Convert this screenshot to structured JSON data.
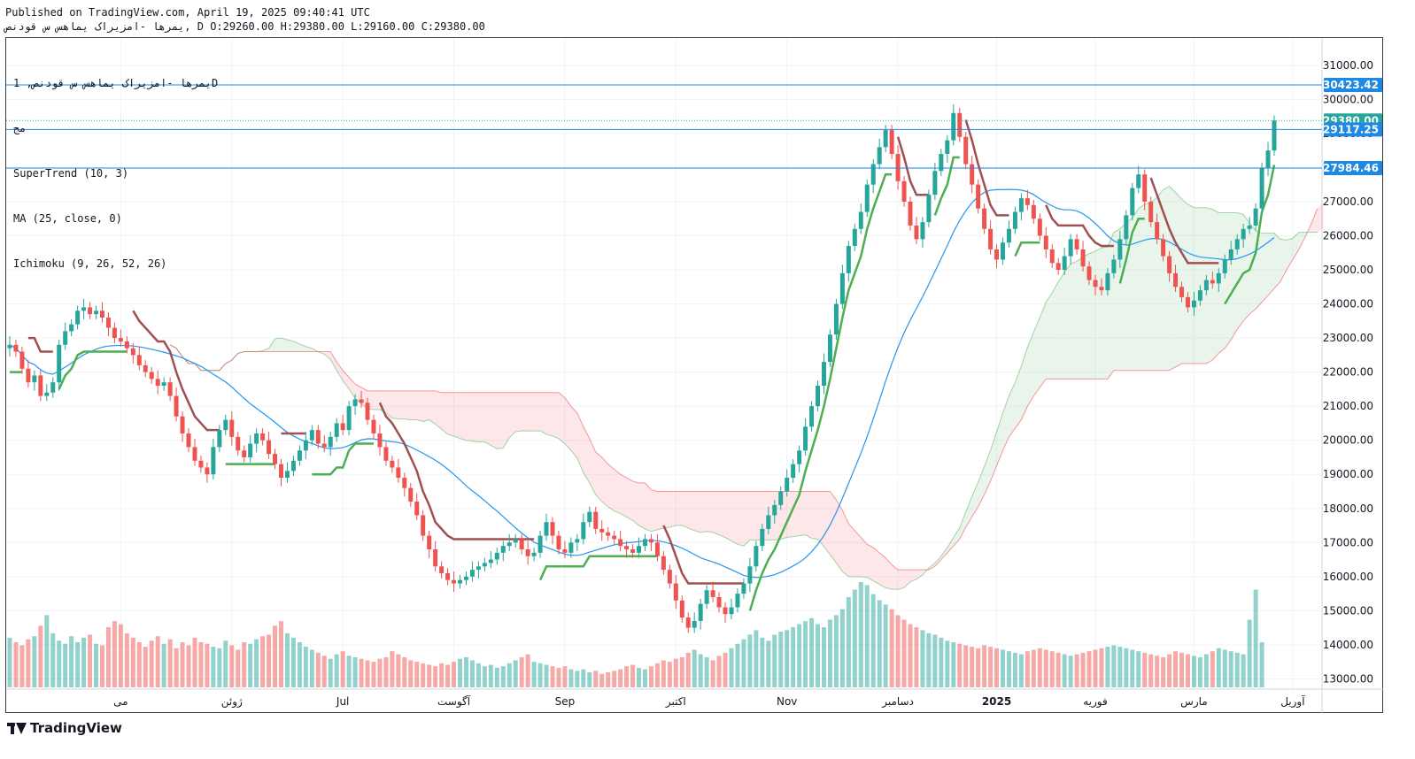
{
  "header": {
    "line1": "Published on TradingView.com, April 19, 2025 09:40:41 UTC",
    "symbol": "یمرها -امزیراک یماهس س قودنص",
    "ohlc": ", D O:29260.00 H:29380.00 L:29160.00 C:29380.00"
  },
  "legend": {
    "title": "یمرها -امزیراک یماهس س قودنص, 1D",
    "exchange": "مج",
    "indicators": [
      "SuperTrend (10, 3)",
      "MA (25, close, 0)",
      "Ichimoku (9, 26, 52, 26)"
    ]
  },
  "footer": {
    "brand": "TradingView"
  },
  "colors": {
    "up": "#26a69a",
    "down": "#ef5350",
    "supertrend_up": "#4caf50",
    "supertrend_down": "#a05050",
    "ma": "#2196f3",
    "hline": "#1e88e5"
  },
  "chart_data": {
    "type": "candlestick",
    "x_labels": [
      "می",
      "ژوئن",
      "Jul",
      "آگوست",
      "Sep",
      "اکتبر",
      "Nov",
      "دسامبر",
      "2025",
      "فوریه",
      "مارس",
      "آوریل"
    ],
    "y_ticks": [
      31000,
      30000,
      29000,
      28000,
      27000,
      26000,
      25000,
      24000,
      23000,
      22000,
      21000,
      20000,
      19000,
      18000,
      17000,
      16000,
      15000,
      14000,
      13000
    ],
    "ylim": [
      12700,
      31800
    ],
    "horizontal_lines": [
      30423.42,
      29117.25,
      27984.46
    ],
    "price_labels": [
      {
        "value": 30423.42,
        "text": "30423.42",
        "color": "#1e88e5"
      },
      {
        "value": 29380.0,
        "text": "29380.00",
        "color": "#26a69a"
      },
      {
        "value": 29117.25,
        "text": "29117.25",
        "color": "#1e88e5"
      },
      {
        "value": 27984.46,
        "text": "27984.46",
        "color": "#1e88e5"
      }
    ],
    "last_close": 29380,
    "closes": [
      22800,
      22600,
      22100,
      21700,
      21900,
      21300,
      21400,
      21700,
      22800,
      23200,
      23400,
      23800,
      23900,
      23700,
      23800,
      23600,
      23300,
      23000,
      22900,
      22700,
      22500,
      22200,
      22000,
      21800,
      21600,
      21700,
      21300,
      20700,
      20200,
      19800,
      19400,
      19200,
      19000,
      19800,
      20300,
      20600,
      20100,
      19700,
      19500,
      19900,
      20200,
      20000,
      19600,
      19300,
      18900,
      19100,
      19400,
      19700,
      20000,
      20300,
      19900,
      19800,
      20100,
      20500,
      20300,
      21000,
      21200,
      21100,
      20600,
      20200,
      19800,
      19400,
      19200,
      18900,
      18600,
      18200,
      17800,
      17200,
      16800,
      16300,
      16100,
      15900,
      15800,
      15900,
      16000,
      16200,
      16300,
      16400,
      16500,
      16700,
      16900,
      17000,
      17100,
      16800,
      16600,
      16700,
      17200,
      17600,
      17200,
      16800,
      16700,
      17000,
      17100,
      17600,
      17900,
      17400,
      17300,
      17200,
      17100,
      16900,
      16800,
      16700,
      16900,
      17100,
      17000,
      16600,
      16200,
      15800,
      15300,
      14800,
      14500,
      14700,
      15200,
      15600,
      15400,
      15100,
      14900,
      15100,
      15500,
      15800,
      16300,
      16900,
      17400,
      17800,
      18100,
      18500,
      18900,
      19300,
      19700,
      20400,
      21000,
      21600,
      22300,
      23100,
      24000,
      24900,
      25700,
      26200,
      26700,
      27500,
      28100,
      28600,
      29100,
      28400,
      27600,
      27000,
      26300,
      25900,
      26400,
      27200,
      27900,
      28400,
      28800,
      29600,
      28900,
      28100,
      27500,
      26800,
      26200,
      25600,
      25300,
      25800,
      26200,
      26700,
      27100,
      26900,
      26500,
      26000,
      25600,
      25200,
      25000,
      25400,
      25900,
      25600,
      25100,
      24700,
      24500,
      24400,
      24900,
      25300,
      25900,
      26600,
      27400,
      27800,
      27000,
      26400,
      25900,
      25400,
      24900,
      24500,
      24200,
      23900,
      24100,
      24400,
      24700,
      24600,
      24900,
      25300,
      25600,
      25900,
      26200,
      26300,
      26800,
      28000,
      28500,
      29380
    ],
    "ma_closes_note": "",
    "volumes": [
      0.33,
      0.3,
      0.28,
      0.32,
      0.34,
      0.41,
      0.48,
      0.36,
      0.31,
      0.29,
      0.34,
      0.3,
      0.33,
      0.35,
      0.29,
      0.28,
      0.4,
      0.44,
      0.42,
      0.36,
      0.33,
      0.3,
      0.27,
      0.31,
      0.34,
      0.29,
      0.32,
      0.26,
      0.3,
      0.28,
      0.33,
      0.3,
      0.29,
      0.27,
      0.26,
      0.31,
      0.28,
      0.25,
      0.3,
      0.29,
      0.32,
      0.34,
      0.35,
      0.41,
      0.44,
      0.36,
      0.33,
      0.3,
      0.27,
      0.25,
      0.23,
      0.21,
      0.19,
      0.22,
      0.24,
      0.21,
      0.2,
      0.19,
      0.18,
      0.17,
      0.19,
      0.2,
      0.24,
      0.22,
      0.2,
      0.18,
      0.17,
      0.16,
      0.15,
      0.14,
      0.16,
      0.15,
      0.17,
      0.19,
      0.2,
      0.18,
      0.16,
      0.14,
      0.15,
      0.13,
      0.14,
      0.16,
      0.18,
      0.2,
      0.22,
      0.17,
      0.16,
      0.15,
      0.14,
      0.13,
      0.14,
      0.12,
      0.11,
      0.12,
      0.1,
      0.11,
      0.09,
      0.1,
      0.11,
      0.12,
      0.14,
      0.15,
      0.13,
      0.12,
      0.14,
      0.16,
      0.18,
      0.17,
      0.19,
      0.2,
      0.23,
      0.25,
      0.22,
      0.2,
      0.18,
      0.21,
      0.23,
      0.26,
      0.29,
      0.32,
      0.35,
      0.38,
      0.33,
      0.31,
      0.35,
      0.37,
      0.38,
      0.4,
      0.42,
      0.44,
      0.46,
      0.42,
      0.4,
      0.45,
      0.48,
      0.52,
      0.6,
      0.65,
      0.7,
      0.68,
      0.62,
      0.58,
      0.55,
      0.52,
      0.48,
      0.45,
      0.42,
      0.4,
      0.38,
      0.36,
      0.35,
      0.33,
      0.31,
      0.3,
      0.29,
      0.28,
      0.27,
      0.26,
      0.28,
      0.27,
      0.26,
      0.25,
      0.24,
      0.23,
      0.22,
      0.24,
      0.25,
      0.26,
      0.25,
      0.24,
      0.23,
      0.22,
      0.21,
      0.22,
      0.23,
      0.24,
      0.25,
      0.26,
      0.27,
      0.28,
      0.27,
      0.26,
      0.25,
      0.24,
      0.23,
      0.22,
      0.21,
      0.2,
      0.22,
      0.24,
      0.23,
      0.22,
      0.21,
      0.2,
      0.22,
      0.24,
      0.26,
      0.25,
      0.24,
      0.23,
      0.22,
      0.45,
      0.65,
      0.3
    ]
  }
}
